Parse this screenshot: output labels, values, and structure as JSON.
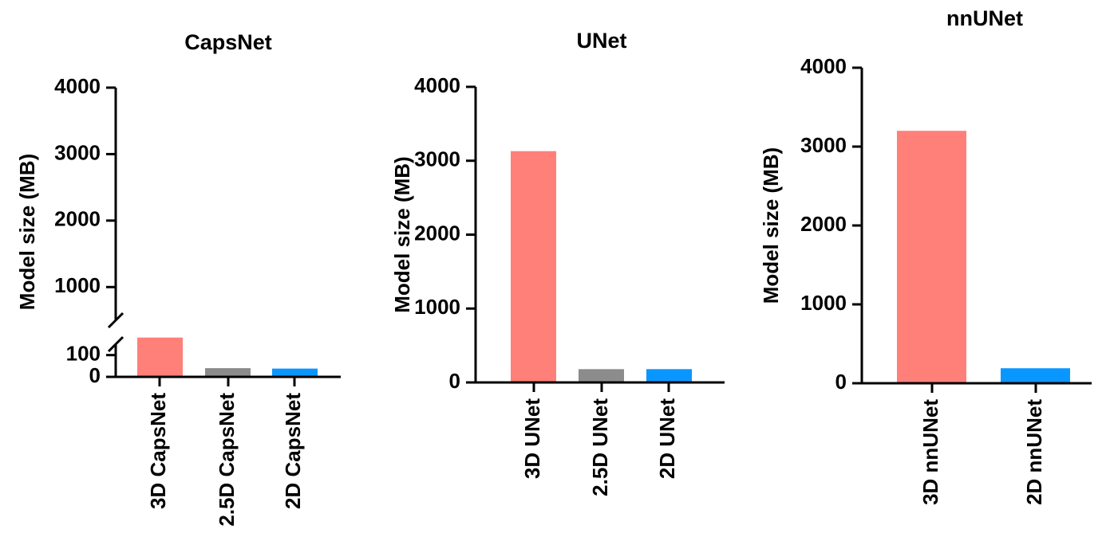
{
  "chart_data": [
    {
      "type": "bar",
      "title": "CapsNet",
      "ylabel": "Model size (MB)",
      "xlabel": "",
      "categories": [
        "3D CapsNet",
        "2.5D CapsNet",
        "2D CapsNet"
      ],
      "values": [
        240,
        40,
        38
      ],
      "colors": [
        "#FF7F79",
        "#8C8C8C",
        "#0A96FF"
      ],
      "axis_break": true,
      "lower_segment": {
        "ylim": [
          0,
          150
        ],
        "ticks": [
          "0",
          "100"
        ]
      },
      "upper_segment": {
        "ylim": [
          500,
          4000
        ],
        "ticks": [
          "1000",
          "2000",
          "3000",
          "4000"
        ]
      }
    },
    {
      "type": "bar",
      "title": "UNet",
      "ylabel": "Model size (MB)",
      "xlabel": "",
      "categories": [
        "3D UNet",
        "2.5D UNet",
        "2D UNet"
      ],
      "values": [
        3130,
        180,
        180
      ],
      "colors": [
        "#FF7F79",
        "#8C8C8C",
        "#0A96FF"
      ],
      "ylim": [
        0,
        4000
      ],
      "ticks": [
        "0",
        "1000",
        "2000",
        "3000",
        "4000"
      ]
    },
    {
      "type": "bar",
      "title": "nnUNet",
      "ylabel": "Model size (MB)",
      "xlabel": "",
      "categories": [
        "3D nnUNet",
        "2D nnUNet"
      ],
      "values": [
        3200,
        190
      ],
      "colors": [
        "#FF7F79",
        "#0A96FF"
      ],
      "ylim": [
        0,
        4000
      ],
      "ticks": [
        "0",
        "1000",
        "2000",
        "3000",
        "4000"
      ]
    }
  ]
}
